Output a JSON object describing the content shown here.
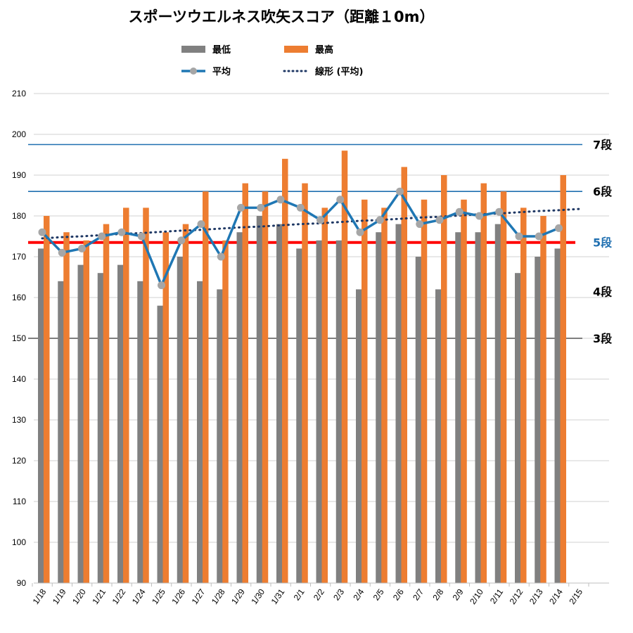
{
  "chart_data": {
    "type": "bar",
    "title": "スポーツウエルネス吹矢スコア（距離１0m）",
    "xlabel": "",
    "ylabel": "",
    "ylim": [
      90,
      210
    ],
    "yticks": [
      90,
      100,
      110,
      120,
      130,
      140,
      150,
      160,
      170,
      180,
      190,
      200,
      210
    ],
    "grid": true,
    "legend_position": "top",
    "categories": [
      "1/18",
      "1/19",
      "1/20",
      "1/21",
      "1/22",
      "1/24",
      "1/25",
      "1/26",
      "1/27",
      "1/28",
      "1/29",
      "1/30",
      "1/31",
      "2/1",
      "2/2",
      "2/3",
      "2/4",
      "2/5",
      "2/6",
      "2/7",
      "2/8",
      "2/9",
      "2/10",
      "2/11",
      "2/12",
      "2/13",
      "2/14",
      "2/15"
    ],
    "series": [
      {
        "name": "最低",
        "kind": "bar",
        "color": "#808080",
        "values": [
          172,
          164,
          168,
          166,
          168,
          164,
          158,
          170,
          164,
          162,
          176,
          180,
          178,
          172,
          174,
          174,
          162,
          176,
          178,
          170,
          162,
          176,
          176,
          178,
          166,
          170,
          172,
          null
        ]
      },
      {
        "name": "最高",
        "kind": "bar",
        "color": "#ED7D31",
        "values": [
          180,
          176,
          174,
          178,
          182,
          182,
          176,
          178,
          186,
          174,
          188,
          186,
          194,
          188,
          182,
          196,
          184,
          182,
          192,
          184,
          190,
          184,
          188,
          186,
          182,
          180,
          190,
          null
        ]
      },
      {
        "name": "平均",
        "kind": "line",
        "color": "#1F77B4",
        "values": [
          176,
          171,
          172,
          175,
          176,
          175,
          163,
          174,
          178,
          170,
          182,
          182,
          184,
          182,
          179,
          184,
          176,
          179,
          186,
          178,
          179,
          181,
          180,
          181,
          175,
          175,
          177,
          null
        ]
      },
      {
        "name": "線形 (平均)",
        "kind": "trendline",
        "color": "#1F3864",
        "values": [
          174.5,
          174.8,
          175.0,
          175.3,
          175.6,
          175.8,
          176.1,
          176.4,
          176.6,
          176.9,
          177.2,
          177.4,
          177.7,
          178.0,
          178.2,
          178.5,
          178.8,
          179.0,
          179.3,
          179.6,
          179.8,
          180.1,
          180.4,
          180.6,
          180.9,
          181.2,
          181.4,
          181.7
        ]
      }
    ],
    "reference_lines": [
      {
        "label": "7段",
        "value": 197.5,
        "color": "#1F6FB0",
        "label_color": "#000000"
      },
      {
        "label": "6段",
        "value": 186,
        "color": "#1F6FB0",
        "label_color": "#000000"
      },
      {
        "label": "5段",
        "value": 173.5,
        "color": "#FF0000",
        "label_color": "#1F6FB0"
      },
      {
        "label": "4段",
        "value": 161.5,
        "color": "",
        "label_color": "#000000"
      },
      {
        "label": "3段",
        "value": 150,
        "color": "#555555",
        "label_color": "#000000"
      }
    ]
  }
}
